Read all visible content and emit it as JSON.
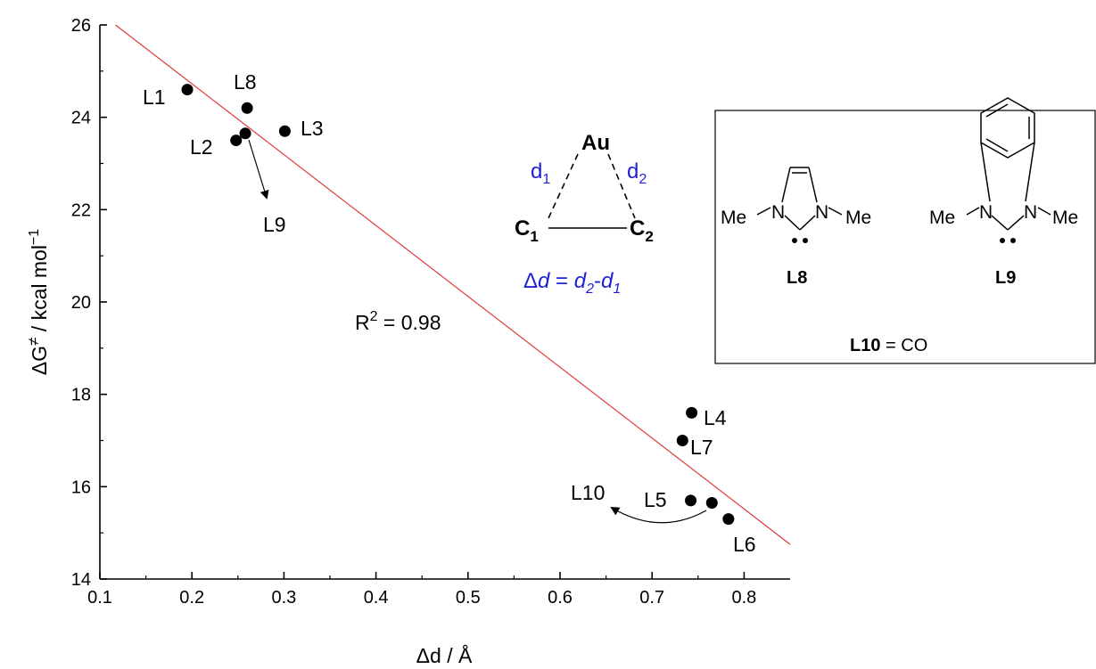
{
  "chart_data": {
    "type": "scatter",
    "xlabel": "Δd / Å",
    "ylabel_main": "ΔG",
    "ylabel_sup": "≠",
    "ylabel_unit": " / kcal mol",
    "ylabel_unit_sup": "−1",
    "xlim": [
      0.1,
      0.85
    ],
    "ylim": [
      14,
      26
    ],
    "xticks": [
      0.1,
      0.2,
      0.3,
      0.4,
      0.5,
      0.6,
      0.7,
      0.8
    ],
    "xtick_labels": [
      "0.1",
      "0.2",
      "0.3",
      "0.4",
      "0.5",
      "0.6",
      "0.7",
      "0.8"
    ],
    "yticks": [
      14,
      16,
      18,
      20,
      22,
      24,
      26
    ],
    "ytick_labels": [
      "14",
      "16",
      "18",
      "20",
      "22",
      "24",
      "26"
    ],
    "grid": false,
    "points": [
      {
        "label": "L1",
        "x": 0.195,
        "y": 24.6
      },
      {
        "label": "L8",
        "x": 0.26,
        "y": 24.2
      },
      {
        "label": "L3",
        "x": 0.301,
        "y": 23.7
      },
      {
        "label": "L2",
        "x": 0.248,
        "y": 23.5
      },
      {
        "label": "L9",
        "x": 0.258,
        "y": 23.65
      },
      {
        "label": "L4",
        "x": 0.743,
        "y": 17.6
      },
      {
        "label": "L7",
        "x": 0.733,
        "y": 17.0
      },
      {
        "label": "L5",
        "x": 0.742,
        "y": 15.7
      },
      {
        "label": "L10",
        "x": 0.765,
        "y": 15.65
      },
      {
        "label": "L6",
        "x": 0.783,
        "y": 15.3
      }
    ],
    "fit_line": {
      "x": [
        0.117,
        0.85
      ],
      "y": [
        26.0,
        14.75
      ],
      "color": "#e03c3c"
    },
    "annotation": {
      "r2_prefix": "R",
      "r2_sup": "2",
      "r2_value": " = 0.98"
    }
  },
  "scheme": {
    "au": "Au",
    "d1": "d",
    "d1_sub": "1",
    "d2": "d",
    "d2_sub": "2",
    "c1": "C",
    "c1_sub": "1",
    "c2": "C",
    "c2_sub": "2",
    "delta_eq_prefix": "Δ",
    "delta_eq_d": "d",
    "delta_eq_equals": " = ",
    "delta_eq_d2": "d",
    "delta_eq_d2_sub": "2",
    "delta_eq_minus": "-",
    "delta_eq_d1": "d",
    "delta_eq_d1_sub": "1",
    "color": "#1f1fd6"
  },
  "legend_box": {
    "l8_n1": "N",
    "l8_n2": "N",
    "l8_me1": "Me",
    "l8_me2": "Me",
    "l8_label": "L8",
    "l9_n1": "N",
    "l9_n2": "N",
    "l9_me1": "Me",
    "l9_me2": "Me",
    "l9_label": "L9",
    "l10_label": "L10",
    "l10_text": " = CO"
  }
}
